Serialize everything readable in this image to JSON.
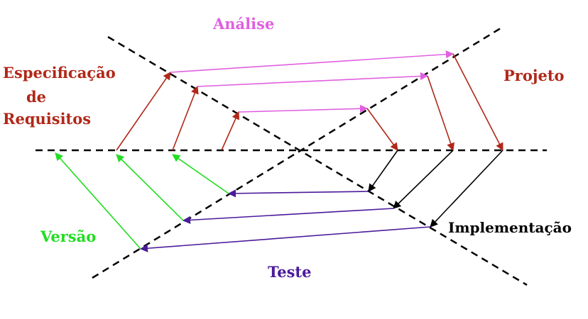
{
  "labels": {
    "analise": "Análise",
    "projeto": "Projeto",
    "especificacao_line1": "Especificação",
    "especificacao_line2": "de",
    "especificacao_line3": "Requisitos",
    "versao": "Versão",
    "implementacao": "Implementação",
    "teste": "Teste"
  },
  "colors": {
    "analise": "#e060e0",
    "projeto": "#b02818",
    "especificacao": "#b02818",
    "versao": "#22dd22",
    "implementacao": "#000000",
    "teste": "#4a1a9a",
    "axes": "#000000"
  }
}
